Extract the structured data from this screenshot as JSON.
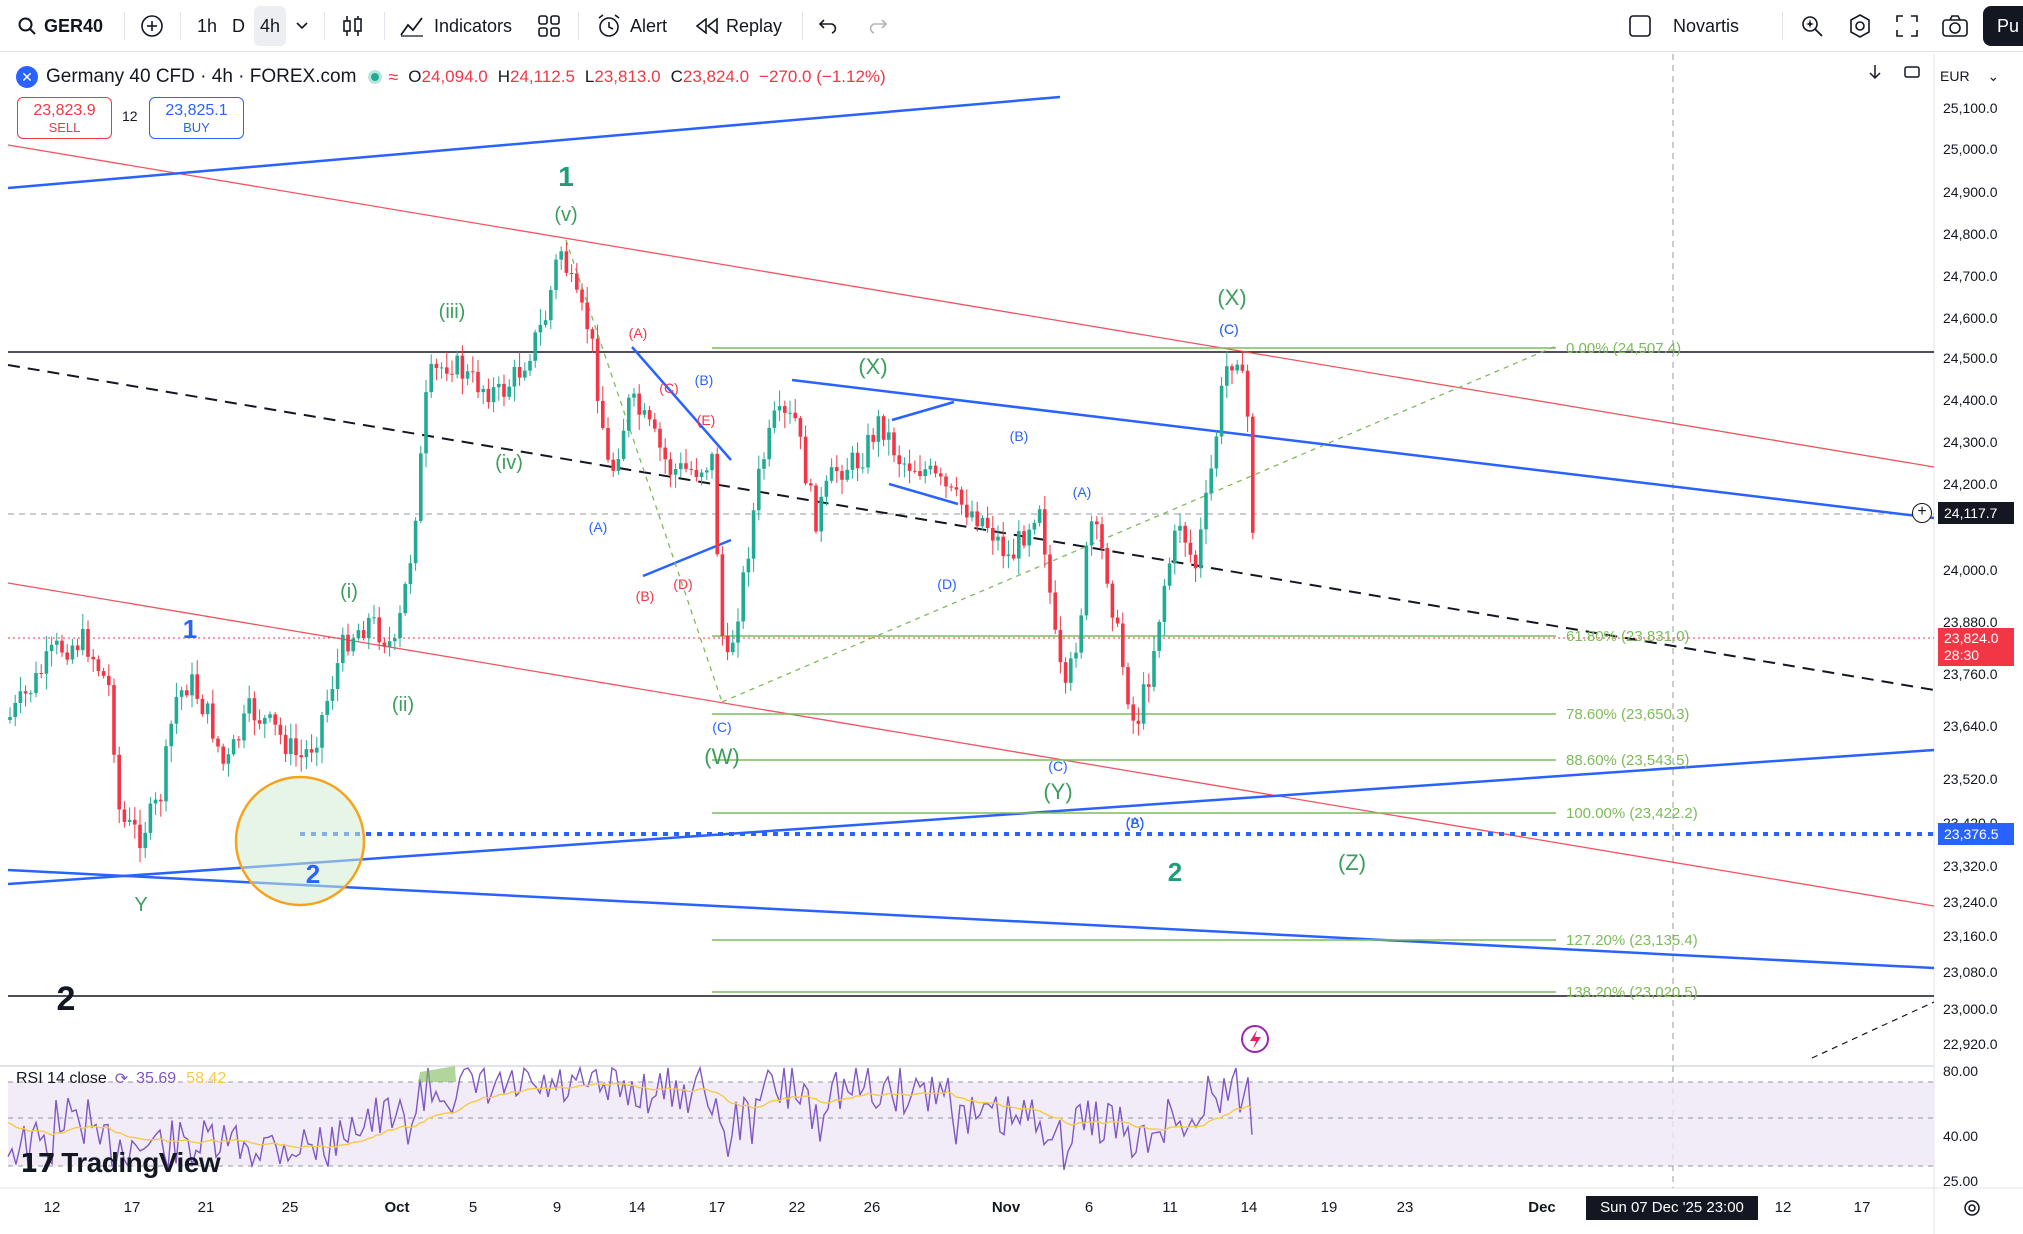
{
  "toolbar": {
    "symbol": "GER40",
    "timeframes": [
      "1h",
      "D",
      "4h"
    ],
    "active_timeframe": "4h",
    "indicators_label": "Indicators",
    "alert_label": "Alert",
    "replay_label": "Replay",
    "watchlist_label": "Novartis",
    "publish_label": "Pu"
  },
  "legend": {
    "title": "Germany 40 CFD · 4h · FOREX.com",
    "open_k": "O",
    "open_v": "24,094.0",
    "high_k": "H",
    "high_v": "24,112.5",
    "low_k": "L",
    "low_v": "23,813.0",
    "close_k": "C",
    "close_v": "23,824.0",
    "change": "−270.0 (−1.12%)"
  },
  "trade": {
    "sell_price": "23,823.9",
    "sell_label": "SELL",
    "spread": "12",
    "buy_price": "23,825.1",
    "buy_label": "BUY"
  },
  "currency": "EUR",
  "price_axis": [
    "25,100.0",
    "25,000.0",
    "24,900.0",
    "24,800.0",
    "24,700.0",
    "24,600.0",
    "24,500.0",
    "24,400.0",
    "24,300.0",
    "24,200.0",
    "24,000.0",
    "23,880.0",
    "23,760.0",
    "23,640.0",
    "23,520.0",
    "23,420.0",
    "23,320.0",
    "23,240.0",
    "23,160.0",
    "23,080.0",
    "23,000.0",
    "22,920.0"
  ],
  "price_tags": {
    "crosshair": "24,117.7",
    "current": "23,824.0",
    "countdown": "28:30",
    "dotted_level": "23,376.5"
  },
  "time_axis": [
    "12",
    "17",
    "21",
    "25",
    "Oct",
    "5",
    "9",
    "14",
    "17",
    "22",
    "26",
    "Nov",
    "6",
    "11",
    "14",
    "19",
    "23",
    "Dec",
    "12",
    "17"
  ],
  "crosshair_date": "Sun 07 Dec '25   23:00",
  "fib_levels": [
    {
      "label": "0.00% (24,507.4)"
    },
    {
      "label": "61.80% (23,831.0)"
    },
    {
      "label": "78.60% (23,650.3)"
    },
    {
      "label": "88.60% (23,543.5)"
    },
    {
      "label": "100.00% (23,422.2)"
    },
    {
      "label": "127.20% (23,135.4)"
    },
    {
      "label": "138.20% (23,020.5)"
    }
  ],
  "wave_labels": [
    "1",
    "(v)",
    "(iii)",
    "(iv)",
    "(i)",
    "(ii)",
    "1",
    "2",
    "Y",
    "2",
    "(A)",
    "(B)",
    "(C)",
    "(D)",
    "(E)",
    "(A)",
    "(B)",
    "(C)",
    "(D)",
    "(C)",
    "(W)",
    "(X)",
    "(B)",
    "(A)",
    "(A)",
    "(C)",
    "(Y)",
    "(B)",
    "2",
    "(X)",
    "(C)",
    "(Z)"
  ],
  "rsi": {
    "label": "RSI 14 close",
    "value1": "35.69",
    "value2": "58.42",
    "axis": [
      "80.00",
      "40.00",
      "25.00"
    ]
  },
  "brand": "TradingView",
  "colors": {
    "up": "#22ab94",
    "down": "#f23645",
    "trend_blue": "#2962ff",
    "channel_red": "#f23645",
    "fib_green": "#7dbb5a",
    "wave_green": "#3b9e5c",
    "rsi_line": "#7e57c2",
    "rsi_fill": "#ede7f6"
  }
}
